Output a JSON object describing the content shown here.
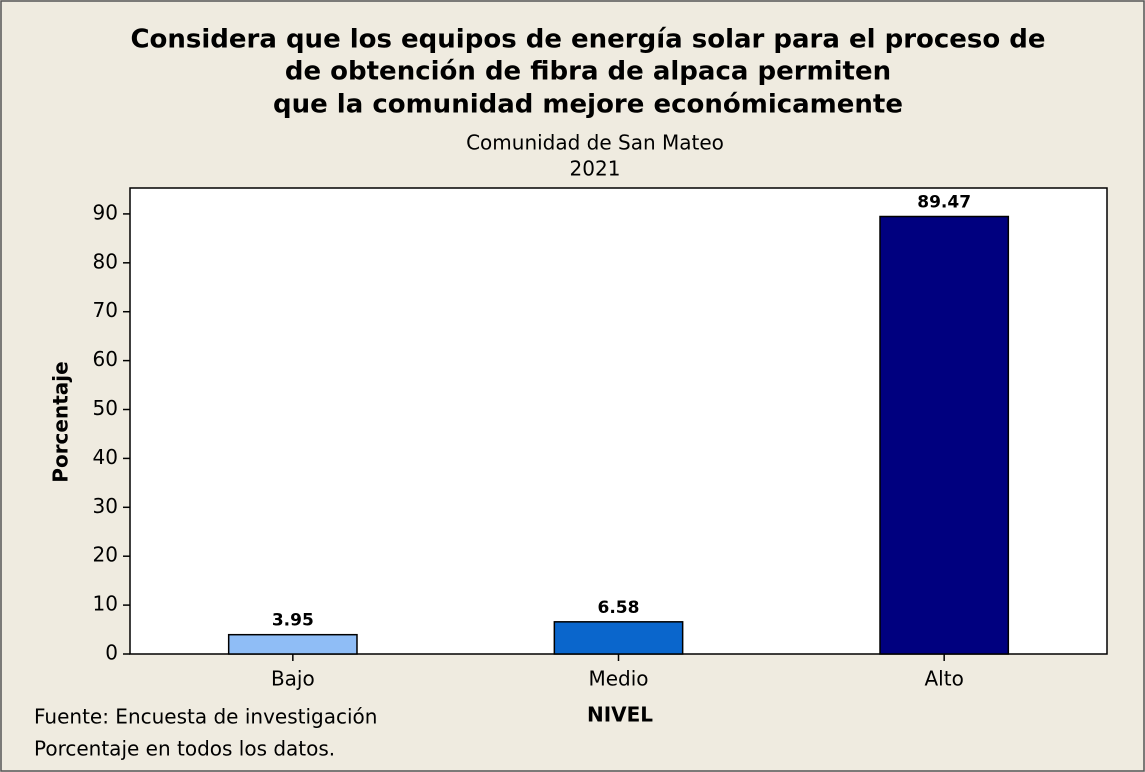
{
  "chart_data": {
    "type": "bar",
    "title": [
      "Considera que los equipos de energía solar para el proceso de",
      "de obtención de fibra de alpaca permiten",
      "que la comunidad mejore económicamente"
    ],
    "subtitle": [
      "Comunidad de San Mateo",
      "2021"
    ],
    "xlabel": "NIVEL",
    "ylabel": "Porcentaje",
    "footnotes": [
      "Fuente: Encuesta de investigación",
      "Porcentaje en todos los datos."
    ],
    "categories": [
      "Bajo",
      "Medio",
      "Alto"
    ],
    "values": [
      3.95,
      6.58,
      89.47
    ],
    "colors": [
      "#8fbdf6",
      "#0a66cc",
      "#00007f"
    ],
    "ylim": [
      0,
      95.3
    ],
    "yticks": [
      0,
      10,
      20,
      30,
      40,
      50,
      60,
      70,
      80,
      90
    ],
    "grid": false
  }
}
